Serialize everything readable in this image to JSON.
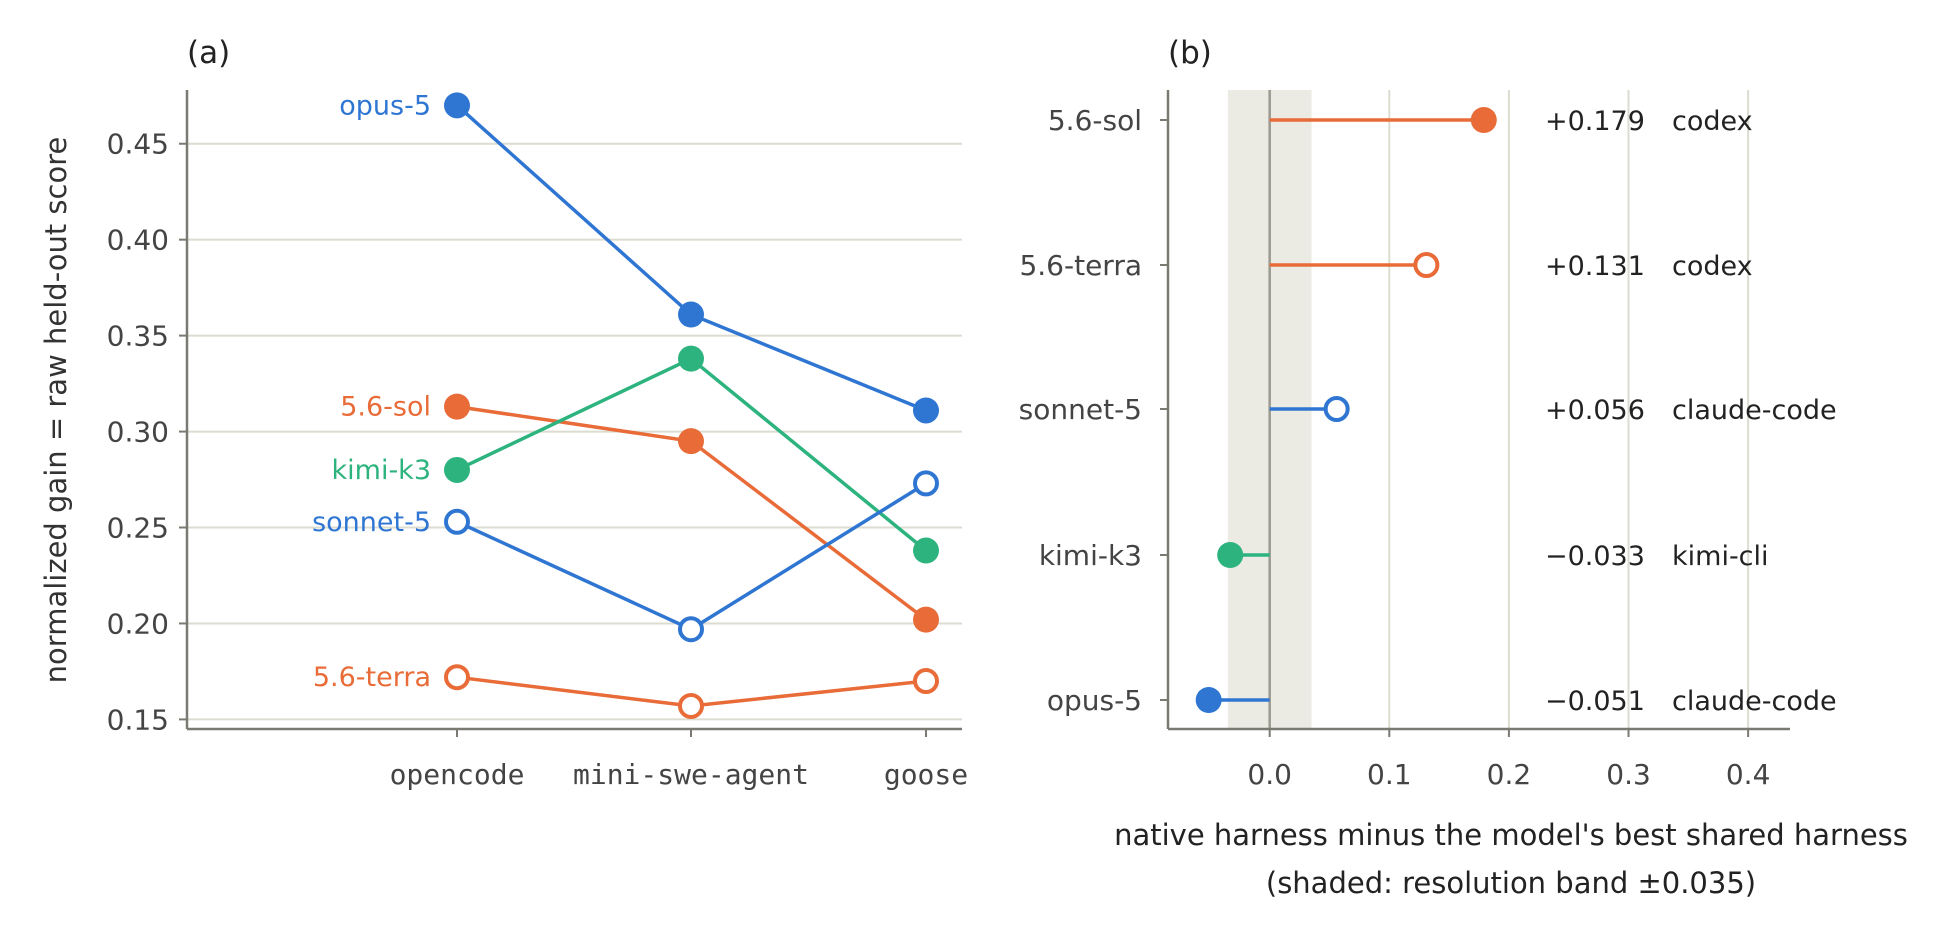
{
  "colors": {
    "opus": "#2f76d2",
    "sonnet": "#2f76d2",
    "sol": "#e86b38",
    "terra": "#e86b38",
    "kimi": "#2db37e",
    "axis": "#7a7a72",
    "grid": "#dcdcd0",
    "band": "#ebebe4",
    "zero": "#9a9a90",
    "text": "#444444"
  },
  "chart_data": [
    {
      "panel_label": "(a)",
      "type": "line",
      "ylabel": "normalized gain = raw held-out score",
      "categories": [
        "opencode",
        "mini-swe-agent",
        "goose"
      ],
      "yticks": [
        "0.15",
        "0.20",
        "0.25",
        "0.30",
        "0.35",
        "0.40",
        "0.45"
      ],
      "ytick_values": [
        0.15,
        0.2,
        0.25,
        0.3,
        0.35,
        0.4,
        0.45
      ],
      "ylim": [
        0.145,
        0.478
      ],
      "grid": "horizontal",
      "series": [
        {
          "name": "opus-5",
          "values": [
            0.47,
            0.361,
            0.311
          ],
          "color": "#2f76d2",
          "filled": true
        },
        {
          "name": "5.6-sol",
          "values": [
            0.313,
            0.295,
            0.202
          ],
          "color": "#e86b38",
          "filled": true
        },
        {
          "name": "kimi-k3",
          "values": [
            0.28,
            0.338,
            0.238
          ],
          "color": "#2db37e",
          "filled": true
        },
        {
          "name": "sonnet-5",
          "values": [
            0.253,
            0.197,
            0.273
          ],
          "color": "#2f76d2",
          "filled": false
        },
        {
          "name": "5.6-terra",
          "values": [
            0.172,
            0.157,
            0.17
          ],
          "color": "#e86b38",
          "filled": false
        }
      ]
    },
    {
      "panel_label": "(b)",
      "type": "lollipop",
      "xlabel_line1": "native harness minus the model's best shared harness",
      "xlabel_line2": "(shaded: resolution band ±0.035)",
      "xticks": [
        "0.0",
        "0.1",
        "0.2",
        "0.3",
        "0.4"
      ],
      "xtick_values": [
        0.0,
        0.1,
        0.2,
        0.3,
        0.4
      ],
      "xlim": [
        -0.085,
        0.435
      ],
      "band": [
        -0.035,
        0.035
      ],
      "grid": "vertical",
      "rows": [
        {
          "model": "5.6-sol",
          "value": 0.179,
          "value_label": "+0.179",
          "harness": "codex",
          "color": "#e86b38",
          "filled": true
        },
        {
          "model": "5.6-terra",
          "value": 0.131,
          "value_label": "+0.131",
          "harness": "codex",
          "color": "#e86b38",
          "filled": false
        },
        {
          "model": "sonnet-5",
          "value": 0.056,
          "value_label": "+0.056",
          "harness": "claude-code",
          "color": "#2f76d2",
          "filled": false
        },
        {
          "model": "kimi-k3",
          "value": -0.033,
          "value_label": "−0.033",
          "harness": "kimi-cli",
          "color": "#2db37e",
          "filled": true
        },
        {
          "model": "opus-5",
          "value": -0.051,
          "value_label": "−0.051",
          "harness": "claude-code",
          "color": "#2f76d2",
          "filled": true
        }
      ]
    }
  ]
}
